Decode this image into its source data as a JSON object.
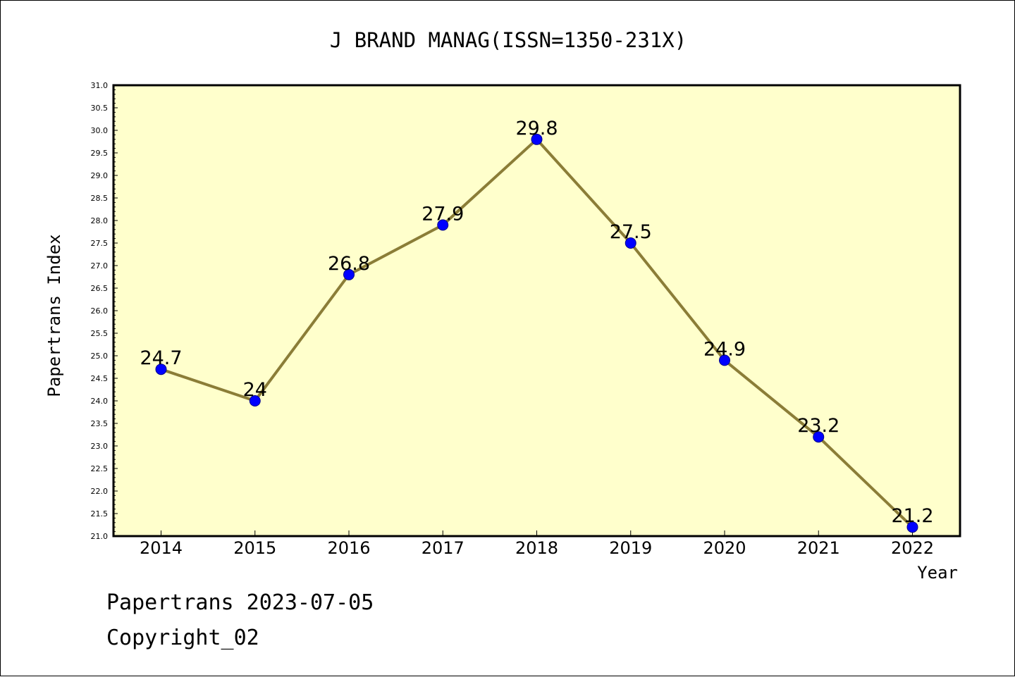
{
  "chart_data": {
    "type": "line",
    "title": "J BRAND MANAG(ISSN=1350-231X)",
    "xlabel": "Year",
    "ylabel": "Papertrans Index",
    "categories": [
      "2014",
      "2015",
      "2016",
      "2017",
      "2018",
      "2019",
      "2020",
      "2021",
      "2022"
    ],
    "series": [
      {
        "values": [
          24.7,
          24.0,
          26.8,
          27.9,
          29.8,
          27.5,
          24.9,
          23.2,
          21.2
        ],
        "data_labels": [
          "24.7",
          "24",
          "26.8",
          "27.9",
          "29.8",
          "27.5",
          "24.9",
          "23.2",
          "21.2"
        ]
      }
    ],
    "ylim": [
      21.0,
      31.0
    ],
    "yticks": [
      "21.0",
      "21.5",
      "22.0",
      "22.5",
      "23.0",
      "23.5",
      "24.0",
      "24.5",
      "25.0",
      "25.5",
      "26.0",
      "26.5",
      "27.0",
      "27.5",
      "28.0",
      "28.5",
      "29.0",
      "29.5",
      "30.0",
      "30.5",
      "31.0"
    ],
    "grid": false,
    "legend": "none"
  },
  "colors": {
    "plot_background": "#ffffcc",
    "line": "#8b7d37",
    "marker_fill": "#0000ff",
    "marker_edge": "#00008b"
  },
  "footer": {
    "line1": "Papertrans 2023-07-05",
    "line2": "Copyright_02"
  }
}
